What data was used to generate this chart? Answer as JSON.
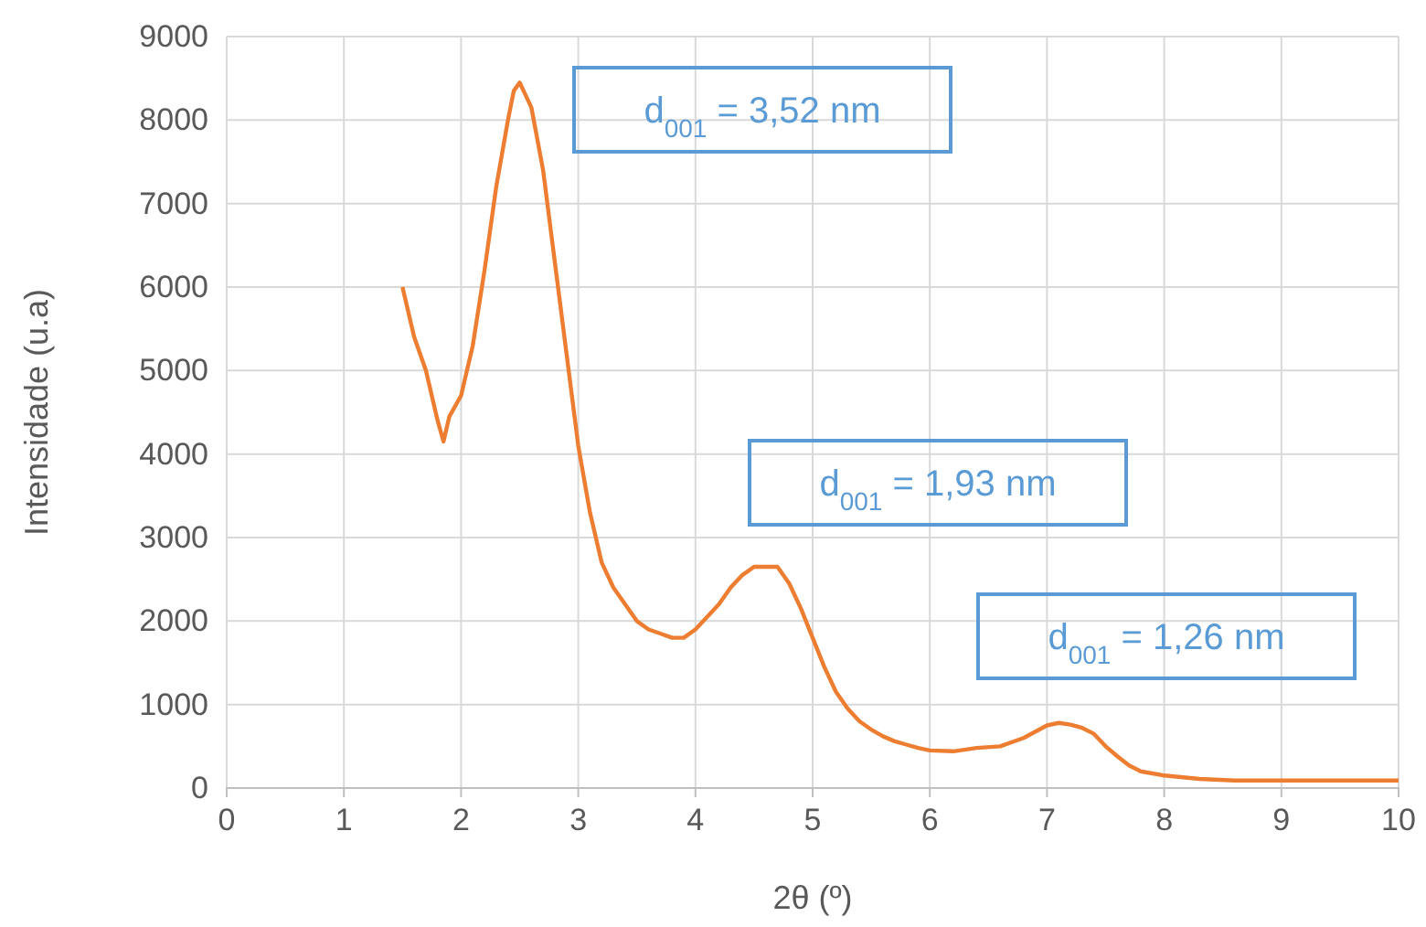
{
  "chart_data": {
    "type": "line",
    "xlabel": "2θ (º)",
    "ylabel": "Intensidade (u.a)",
    "xlim": [
      0,
      10
    ],
    "xticks": [
      0,
      1,
      2,
      3,
      4,
      5,
      6,
      7,
      8,
      9,
      10
    ],
    "ylim": [
      0,
      9000
    ],
    "yticks": [
      0,
      1000,
      2000,
      3000,
      4000,
      5000,
      6000,
      7000,
      8000,
      9000
    ],
    "grid": true,
    "marker": "none",
    "line_style": "solid",
    "x": [
      1.5,
      1.6,
      1.7,
      1.8,
      1.85,
      1.9,
      2.0,
      2.1,
      2.2,
      2.3,
      2.4,
      2.45,
      2.5,
      2.55,
      2.6,
      2.7,
      2.8,
      2.9,
      3.0,
      3.1,
      3.2,
      3.3,
      3.4,
      3.5,
      3.6,
      3.7,
      3.8,
      3.9,
      4.0,
      4.1,
      4.2,
      4.3,
      4.4,
      4.5,
      4.6,
      4.7,
      4.8,
      4.9,
      5.0,
      5.1,
      5.2,
      5.3,
      5.4,
      5.5,
      5.6,
      5.7,
      5.8,
      5.9,
      6.0,
      6.2,
      6.4,
      6.6,
      6.8,
      7.0,
      7.1,
      7.2,
      7.3,
      7.4,
      7.5,
      7.6,
      7.7,
      7.8,
      8.0,
      8.3,
      8.6,
      9.0,
      9.5,
      10.0
    ],
    "series": [
      {
        "color": "#ed7d31",
        "values": [
          6000,
          5400,
          5000,
          4400,
          4150,
          4450,
          4700,
          5300,
          6200,
          7200,
          8000,
          8350,
          8450,
          8300,
          8150,
          7400,
          6300,
          5200,
          4100,
          3300,
          2700,
          2400,
          2200,
          2000,
          1900,
          1850,
          1800,
          1800,
          1900,
          2050,
          2200,
          2400,
          2550,
          2650,
          2650,
          2650,
          2450,
          2150,
          1800,
          1450,
          1150,
          950,
          800,
          700,
          620,
          560,
          520,
          480,
          450,
          440,
          480,
          500,
          600,
          750,
          780,
          760,
          720,
          650,
          500,
          380,
          270,
          200,
          150,
          110,
          90,
          90,
          90,
          90
        ]
      }
    ],
    "annotations": [
      "d$_{001}$ = 3,52 nm",
      "d$_{001}$ = 1,93 nm",
      "d$_{001}$ = 1,26 nm"
    ]
  }
}
